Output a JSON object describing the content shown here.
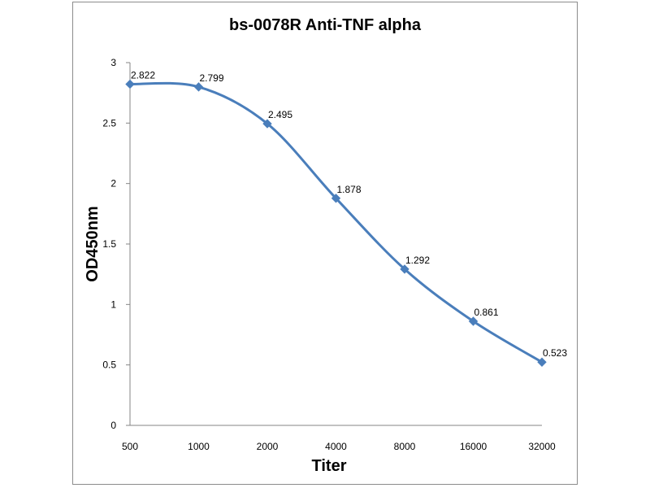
{
  "chart_data": {
    "type": "line",
    "title": "bs-0078R Anti-TNF alpha",
    "xlabel": "Titer",
    "ylabel": "OD450nm",
    "categories": [
      "500",
      "1000",
      "2000",
      "4000",
      "8000",
      "16000",
      "32000"
    ],
    "series": [
      {
        "name": "OD450nm",
        "values": [
          2.822,
          2.799,
          2.495,
          1.878,
          1.292,
          0.861,
          0.523
        ],
        "labels": [
          "2.822",
          "2.799",
          "2.495",
          "1.878",
          "1.292",
          "0.861",
          "0.523"
        ],
        "color": "#4a7ebb",
        "smooth": true,
        "marker": "diamond"
      }
    ],
    "ylim": [
      0,
      3
    ],
    "yticks": [
      "0",
      "0.5",
      "1",
      "1.5",
      "2",
      "2.5",
      "3"
    ],
    "grid": false,
    "legend": "none"
  }
}
